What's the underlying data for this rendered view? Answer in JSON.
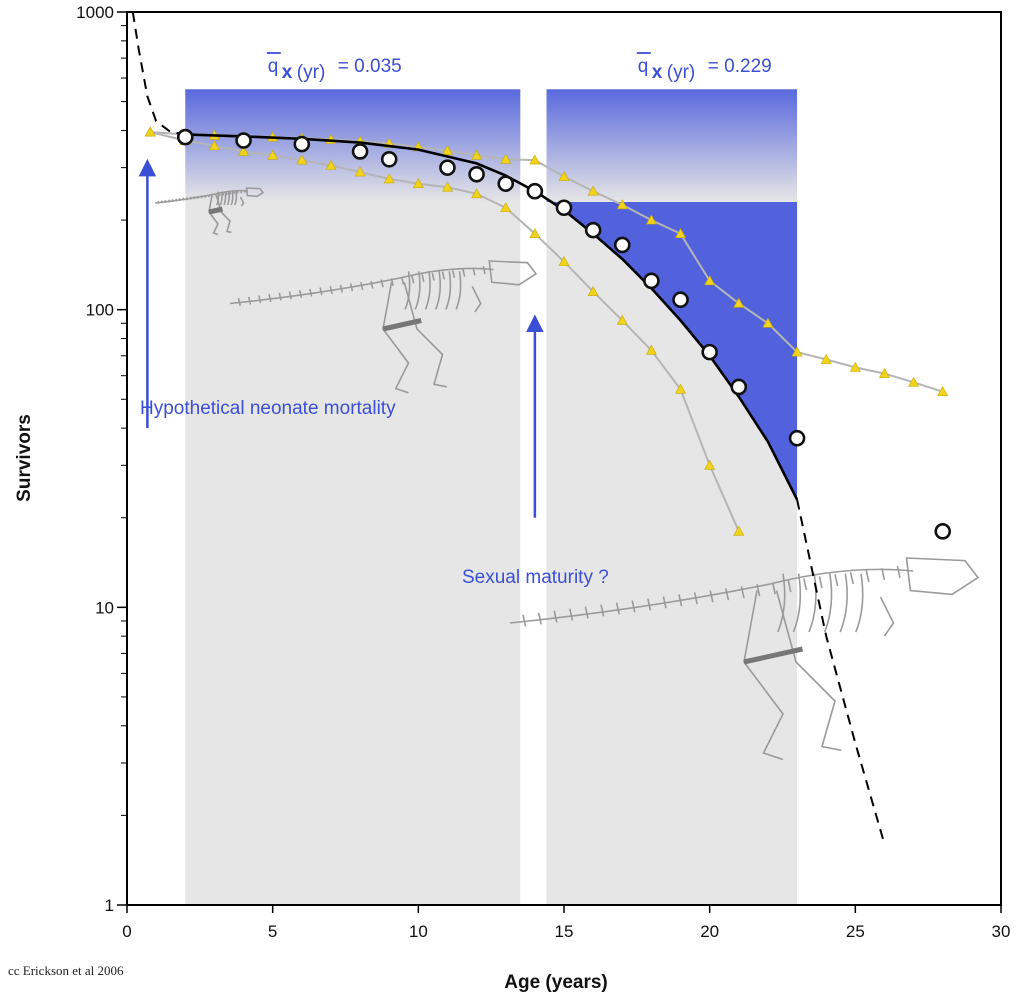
{
  "chart_data": {
    "type": "line",
    "title": "",
    "xlabel": "Age (years)",
    "ylabel": "Survivors",
    "xlim": [
      0,
      30
    ],
    "ylim": [
      1,
      1000
    ],
    "yscale": "log",
    "x_ticks": [
      "0",
      "5",
      "10",
      "15",
      "20",
      "25",
      "30"
    ],
    "y_ticks": [
      "1",
      "10",
      "100",
      "1000"
    ],
    "grid": false,
    "series": [
      {
        "name": "",
        "style": "open-circle-points",
        "color": "#111111",
        "x": [
          2,
          4,
          6,
          8,
          9,
          11,
          12,
          13,
          14,
          15,
          16,
          17,
          18,
          19,
          20,
          21,
          23,
          28
        ],
        "y": [
          380,
          370,
          360,
          340,
          320,
          300,
          285,
          265,
          250,
          220,
          185,
          165,
          125,
          108,
          72,
          55,
          37,
          18
        ]
      },
      {
        "name": "",
        "style": "upper-triangle-line",
        "color": "#f2d31b",
        "x": [
          0.8,
          2,
          3,
          4,
          5,
          6,
          7,
          8,
          9,
          10,
          11,
          12,
          13,
          14,
          15,
          16,
          17,
          18,
          19,
          20,
          21,
          22,
          23,
          24,
          25,
          26,
          27,
          28
        ],
        "y": [
          395,
          388,
          385,
          382,
          380,
          377,
          373,
          368,
          362,
          352,
          342,
          330,
          320,
          318,
          280,
          250,
          225,
          200,
          180,
          125,
          105,
          90,
          72,
          68,
          64,
          61,
          57,
          53
        ]
      },
      {
        "name": "",
        "style": "lower-triangle-line",
        "color": "#f2d31b",
        "x": [
          0.8,
          2,
          3,
          4,
          5,
          6,
          7,
          8,
          9,
          10,
          11,
          12,
          13,
          14,
          15,
          16,
          17,
          18,
          19,
          20,
          21
        ],
        "y": [
          395,
          370,
          355,
          340,
          330,
          318,
          305,
          290,
          275,
          265,
          258,
          245,
          220,
          180,
          145,
          115,
          92,
          73,
          54,
          30,
          18
        ]
      },
      {
        "name": "",
        "style": "fitted-curve",
        "color": "#000000",
        "x": [
          2,
          4,
          6,
          8,
          10,
          12,
          13,
          14,
          15,
          16,
          17,
          18,
          19,
          20,
          21,
          22,
          23
        ],
        "y": [
          388,
          382,
          375,
          364,
          345,
          310,
          282,
          250,
          216,
          180,
          148,
          118,
          92,
          70,
          51,
          36,
          23
        ]
      },
      {
        "name": "",
        "style": "dashed-extrapolation-early",
        "color": "#000000",
        "x": [
          0.2,
          0.4,
          0.7,
          1.0,
          1.5,
          2.0
        ],
        "y": [
          1000,
          750,
          520,
          430,
          395,
          388
        ]
      },
      {
        "name": "",
        "style": "dashed-extrapolation-late",
        "color": "#000000",
        "x": [
          23,
          24,
          25,
          26
        ],
        "y": [
          23,
          8,
          3.5,
          1.6
        ]
      }
    ],
    "regions": [
      {
        "x0": 2,
        "x1": 13.5,
        "color": "#e6e6e6",
        "label": "qx_low"
      },
      {
        "x0": 14.4,
        "x1": 23,
        "color": "#e6e6e6",
        "label": "qx_high"
      }
    ],
    "annotations": {
      "qx_low": {
        "symbol": "q",
        "subscript_x": "x",
        "subscript_yr": "(yr)",
        "value": "= 0.035",
        "x": 6
      },
      "qx_high": {
        "symbol": "q",
        "subscript_x": "x",
        "subscript_yr": "(yr)",
        "value": "= 0.229",
        "x": 18.7
      },
      "neonate": {
        "text": "Hypothetical neonate mortality",
        "arrow_x": 0.7,
        "arrow_y_from": 40,
        "arrow_y_to": 300
      },
      "maturity": {
        "text": "Sexual maturity ?",
        "arrow_x": 14,
        "arrow_y_from": 20,
        "arrow_y_to": 90
      }
    },
    "credit": "cc Erickson et al 2006",
    "colors": {
      "accent_blue": "#4a5bdc",
      "annotation_blue": "#3b4fd6",
      "gray_region": "#e6e6e6",
      "triangle_yellow": "#f2d31b",
      "triangle_line": "#b5b5b5"
    }
  }
}
